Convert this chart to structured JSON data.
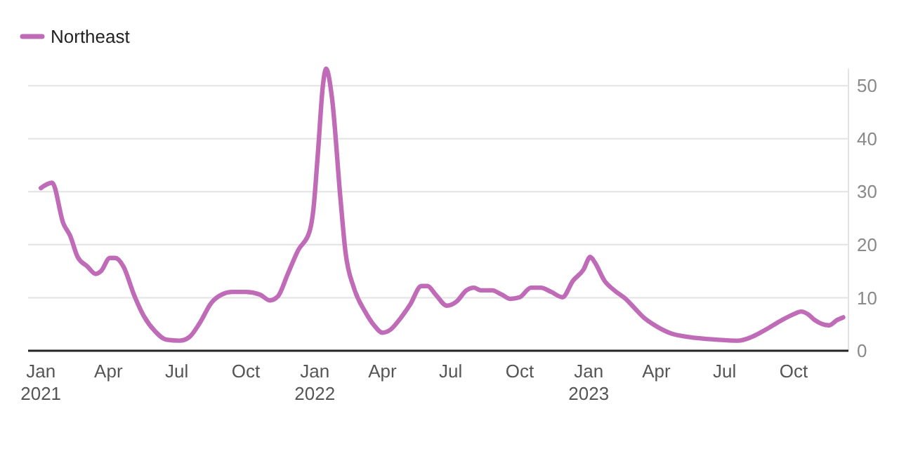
{
  "chart_data": {
    "type": "line",
    "x": [
      "2021-01-01",
      "2021-01-16",
      "2021-01-31",
      "2021-02-09",
      "2021-02-19",
      "2021-03-04",
      "2021-03-15",
      "2021-03-22",
      "2021-04-03",
      "2021-04-10",
      "2021-04-21",
      "2021-05-05",
      "2021-05-18",
      "2021-06-02",
      "2021-06-17",
      "2021-07-05",
      "2021-07-18",
      "2021-08-01",
      "2021-08-16",
      "2021-08-30",
      "2021-09-13",
      "2021-10-01",
      "2021-10-20",
      "2021-11-02",
      "2021-11-13",
      "2021-11-26",
      "2021-12-10",
      "2021-12-25",
      "2021-12-30",
      "2022-01-05",
      "2022-01-12",
      "2022-01-16",
      "2022-01-24",
      "2022-02-04",
      "2022-02-11",
      "2022-02-22",
      "2022-03-09",
      "2022-03-21",
      "2022-04-01",
      "2022-04-12",
      "2022-04-25",
      "2022-05-08",
      "2022-05-23",
      "2022-05-31",
      "2022-06-11",
      "2022-06-26",
      "2022-07-09",
      "2022-07-22",
      "2022-08-01",
      "2022-08-10",
      "2022-08-25",
      "2022-09-07",
      "2022-09-18",
      "2022-10-01",
      "2022-10-16",
      "2022-10-29",
      "2022-11-12",
      "2022-11-27",
      "2022-12-11",
      "2022-12-25",
      "2023-01-03",
      "2023-01-09",
      "2023-01-22",
      "2023-02-04",
      "2023-02-19",
      "2023-03-04",
      "2023-03-15",
      "2023-03-30",
      "2023-04-22",
      "2023-05-14",
      "2023-06-20",
      "2023-07-19",
      "2023-08-06",
      "2023-08-25",
      "2023-09-13",
      "2023-10-01",
      "2023-10-11",
      "2023-10-20",
      "2023-10-29",
      "2023-11-17",
      "2023-11-28",
      "2023-12-06"
    ],
    "series": [
      {
        "name": "Northeast",
        "color": "#c06bb8",
        "values": [
          30.7,
          31.7,
          24,
          21.7,
          17.7,
          15.9,
          14.5,
          15,
          17.5,
          17.5,
          15.9,
          10.6,
          6.6,
          3.7,
          2.1,
          1.9,
          2.6,
          5.3,
          9,
          10.6,
          11.1,
          11.1,
          10.6,
          9.5,
          10.3,
          14.5,
          19,
          22.5,
          26.5,
          37,
          50.3,
          53.2,
          47.6,
          29,
          18.5,
          11.9,
          7.4,
          4.8,
          3.4,
          4,
          6.1,
          8.7,
          12.2,
          12.2,
          10.6,
          8.5,
          9.3,
          11.4,
          11.9,
          11.4,
          11.4,
          10.6,
          9.8,
          10.1,
          11.9,
          11.9,
          11.1,
          10.1,
          13.2,
          15.3,
          17.7,
          16.7,
          13.2,
          11.4,
          9.8,
          7.9,
          6.3,
          4.8,
          3.2,
          2.6,
          2.1,
          1.9,
          2.6,
          4,
          5.6,
          6.9,
          7.4,
          6.9,
          5.8,
          4.8,
          5.8,
          6.3
        ]
      }
    ],
    "xlim": [
      "2020-12-15",
      "2023-12-13"
    ],
    "xticks": [
      {
        "value": "2021-01-01",
        "label": "Jan\n2021"
      },
      {
        "value": "2021-04-01",
        "label": "Apr"
      },
      {
        "value": "2021-07-01",
        "label": "Jul"
      },
      {
        "value": "2021-10-01",
        "label": "Oct"
      },
      {
        "value": "2022-01-01",
        "label": "Jan\n2022"
      },
      {
        "value": "2022-04-01",
        "label": "Apr"
      },
      {
        "value": "2022-07-01",
        "label": "Jul"
      },
      {
        "value": "2022-10-01",
        "label": "Oct"
      },
      {
        "value": "2023-01-01",
        "label": "Jan\n2023"
      },
      {
        "value": "2023-04-01",
        "label": "Apr"
      },
      {
        "value": "2023-07-01",
        "label": "Jul"
      },
      {
        "value": "2023-10-01",
        "label": "Oct"
      }
    ],
    "ylim": [
      0,
      53.2
    ],
    "yticks": [
      0,
      10,
      20,
      30,
      40,
      50
    ],
    "grid": "y",
    "legend": "top left",
    "line_style": "solid",
    "marker": "none"
  }
}
